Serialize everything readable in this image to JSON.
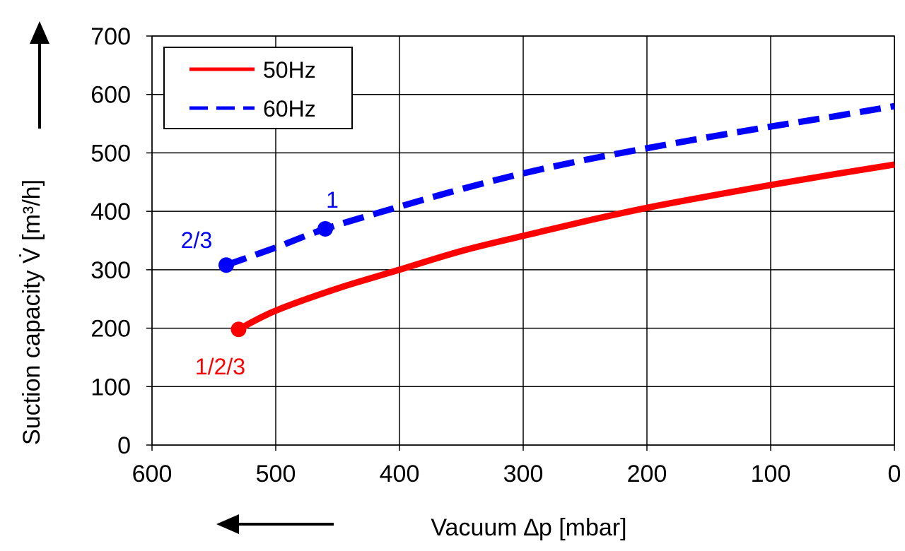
{
  "chart_data": {
    "type": "line",
    "title": "",
    "xlabel": "Vacuum ∆p [mbar]",
    "ylabel": "Suction capacity V̇ [m³/h]",
    "xlim": [
      600,
      0
    ],
    "ylim": [
      0,
      700
    ],
    "x_reversed": true,
    "x_ticks": [
      "600",
      "500",
      "400",
      "300",
      "200",
      "100",
      "0"
    ],
    "y_ticks": [
      "0",
      "100",
      "200",
      "300",
      "400",
      "500",
      "600",
      "700"
    ],
    "grid": true,
    "legend_position": "top-left",
    "series": [
      {
        "name": "50Hz",
        "color": "#ff0000",
        "style": "solid",
        "points": [
          {
            "x": 530,
            "y": 198
          },
          {
            "x": 500,
            "y": 230
          },
          {
            "x": 450,
            "y": 268
          },
          {
            "x": 400,
            "y": 300
          },
          {
            "x": 350,
            "y": 332
          },
          {
            "x": 300,
            "y": 358
          },
          {
            "x": 250,
            "y": 383
          },
          {
            "x": 200,
            "y": 406
          },
          {
            "x": 150,
            "y": 426
          },
          {
            "x": 100,
            "y": 445
          },
          {
            "x": 50,
            "y": 463
          },
          {
            "x": 0,
            "y": 480
          }
        ]
      },
      {
        "name": "60Hz",
        "color": "#0000ff",
        "style": "dashed",
        "points": [
          {
            "x": 540,
            "y": 308
          },
          {
            "x": 500,
            "y": 338
          },
          {
            "x": 460,
            "y": 370
          },
          {
            "x": 400,
            "y": 408
          },
          {
            "x": 350,
            "y": 438
          },
          {
            "x": 300,
            "y": 465
          },
          {
            "x": 250,
            "y": 488
          },
          {
            "x": 200,
            "y": 508
          },
          {
            "x": 150,
            "y": 527
          },
          {
            "x": 100,
            "y": 545
          },
          {
            "x": 50,
            "y": 562
          },
          {
            "x": 0,
            "y": 580
          }
        ]
      }
    ],
    "markers": [
      {
        "series": "50Hz",
        "x": 530,
        "y": 198,
        "label": "1/2/3",
        "color": "#ff0000",
        "label_pos": "below-left"
      },
      {
        "series": "60Hz",
        "x": 540,
        "y": 308,
        "label": "2/3",
        "color": "#0000ff",
        "label_pos": "above-left"
      },
      {
        "series": "60Hz",
        "x": 460,
        "y": 370,
        "label": "1",
        "color": "#0000ff",
        "label_pos": "above-right"
      }
    ]
  }
}
